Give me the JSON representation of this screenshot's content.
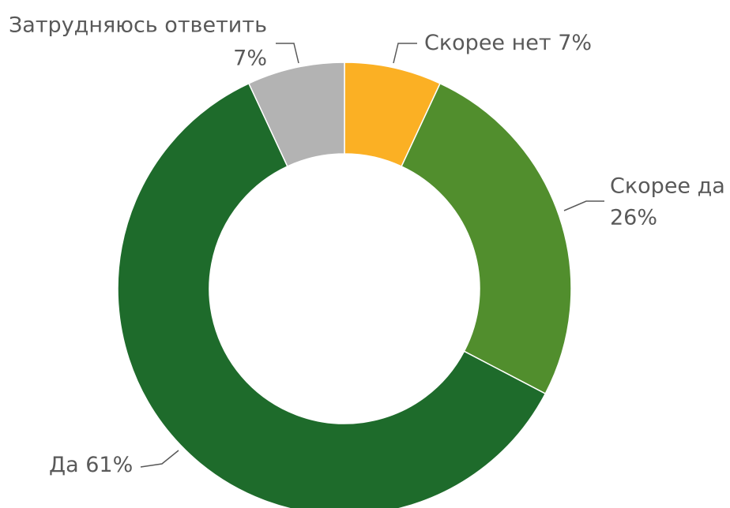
{
  "chart_data": {
    "type": "donut",
    "categories": [
      "Скорее нет",
      "Скорее да",
      "Да",
      "Затрудняюсь ответить"
    ],
    "values": [
      7,
      26,
      61,
      7
    ],
    "value_labels": [
      "7%",
      "26%",
      "61%",
      "7%"
    ],
    "colors": [
      "#fbb024",
      "#518e2d",
      "#1e6b2b",
      "#b3b3b3"
    ]
  }
}
